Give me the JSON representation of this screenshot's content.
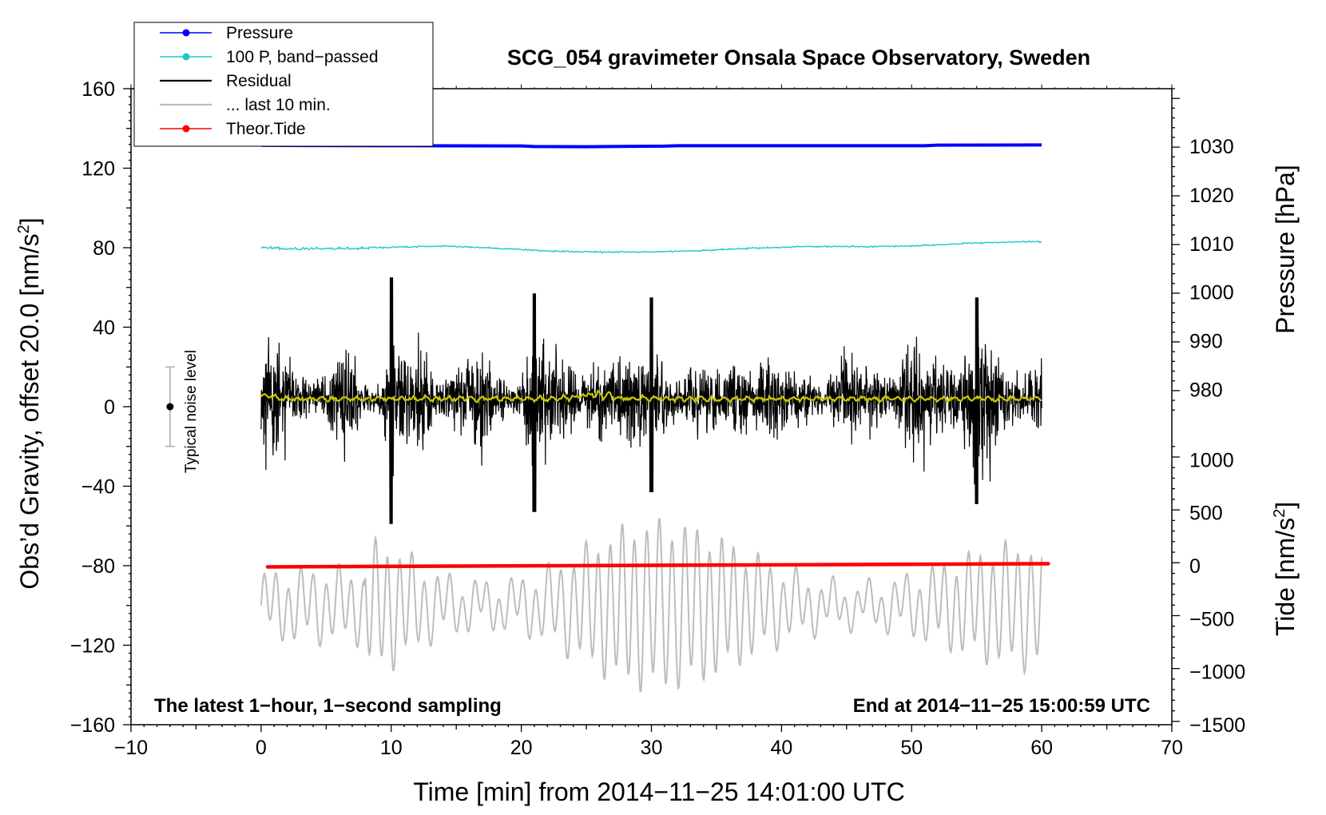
{
  "chart_data": {
    "type": "line",
    "title": "SCG_054 gravimeter Onsala Space Observatory, Sweden",
    "xlabel": "Time [min] from 2014−11−25 14:01:00 UTC",
    "ylabel_left": "Obs’d Gravity, offset 20.0 [nm/s",
    "ylabel_left_sup": "2",
    "ylabel_left_end": "]",
    "ylabel_right_pressure": "Pressure [hPa]",
    "ylabel_right_tide": "Tide [nm/s",
    "ylabel_right_tide_sup": "2",
    "ylabel_right_tide_end": "]",
    "xlim": [
      -10,
      70
    ],
    "ylim": [
      -160,
      160
    ],
    "x_ticks": [
      -10,
      0,
      10,
      20,
      30,
      40,
      50,
      60,
      70
    ],
    "x_tick_labels": [
      "−10",
      "0",
      "10",
      "20",
      "30",
      "40",
      "50",
      "60",
      "70"
    ],
    "y_ticks": [
      -160,
      -120,
      -80,
      -40,
      0,
      40,
      80,
      120,
      160
    ],
    "y_tick_labels": [
      "−160",
      "−120",
      "−80",
      "−40",
      "0",
      "40",
      "80",
      "120",
      "160"
    ],
    "pressure_axis": {
      "ticks_y": [
        131.1,
        106.6,
        82.1,
        57.6,
        33.1,
        8.6
      ],
      "labels": [
        "1030",
        "1020",
        "1010",
        "1000",
        "990",
        "980"
      ]
    },
    "tide_axis": {
      "ticks_y": [
        -26.7,
        -53.3,
        -80.0,
        -106.7,
        -133.3,
        -160.0
      ],
      "labels": [
        "1000",
        "500",
        "0",
        "−500",
        "−1000",
        "−1500"
      ]
    },
    "legend": [
      {
        "label": "Pressure",
        "color": "#0000ff",
        "marker": true
      },
      {
        "label": "100 P, band−passed",
        "color": "#20c8c8",
        "marker": true
      },
      {
        "label": "Residual",
        "color": "#000000",
        "marker": false
      },
      {
        "label": "... last 10 min.",
        "color": "#bdbdbd",
        "marker": false
      },
      {
        "label": "Theor.Tide",
        "color": "#ff0000",
        "marker": true
      }
    ],
    "legend_position": "top-left",
    "annotations": {
      "left_note": "The latest 1−hour, 1−second sampling",
      "right_note": "End at 2014−11−25 15:00:59 UTC",
      "noise_label": "Typical noise level",
      "noise_bar": {
        "x": -7,
        "center": 0,
        "half_range": 20
      }
    },
    "series": [
      {
        "name": "Pressure",
        "color": "#0000ff",
        "x": [
          0,
          10,
          20,
          21,
          25,
          31,
          32,
          40,
          51,
          52,
          60
        ],
        "values": [
          131.5,
          131.3,
          131.2,
          130.9,
          130.8,
          131.1,
          131.3,
          131.3,
          131.3,
          131.6,
          131.7
        ]
      },
      {
        "name": "100 P, band−passed",
        "color": "#20c8c8",
        "x": [
          0,
          1,
          2,
          4,
          7,
          10,
          14,
          18,
          22,
          26,
          30,
          34,
          38,
          42,
          46,
          50,
          54,
          58,
          60
        ],
        "values": [
          80.2,
          79.8,
          79.3,
          79.6,
          79.6,
          80.2,
          80.8,
          79.8,
          78.3,
          77.8,
          77.9,
          78.6,
          79.8,
          80.6,
          80.5,
          80.8,
          82.2,
          82.9,
          83.0
        ]
      },
      {
        "name": "Residual",
        "color": "#000000",
        "x_range": [
          0,
          60
        ],
        "envelope": [
          {
            "x": 10,
            "min": -59,
            "max": 65
          },
          {
            "x": 21,
            "min": -53,
            "max": 57
          },
          {
            "x": 30,
            "min": -43,
            "max": 55
          },
          {
            "x": 55,
            "min": -49,
            "max": 55
          }
        ],
        "typical_amplitude": 25
      },
      {
        "name": "Residual (smoothed)",
        "color": "#c8c800",
        "x_range": [
          0,
          60
        ],
        "mean": 4
      },
      {
        "name": "... last 10 min.",
        "color": "#bdbdbd",
        "x_range": [
          0,
          60
        ],
        "center": -100,
        "min": -153,
        "max": -48
      },
      {
        "name": "Theor.Tide",
        "color": "#ff0000",
        "x": [
          0.5,
          60.5
        ],
        "values": [
          -80.6,
          -79.0
        ]
      }
    ]
  }
}
